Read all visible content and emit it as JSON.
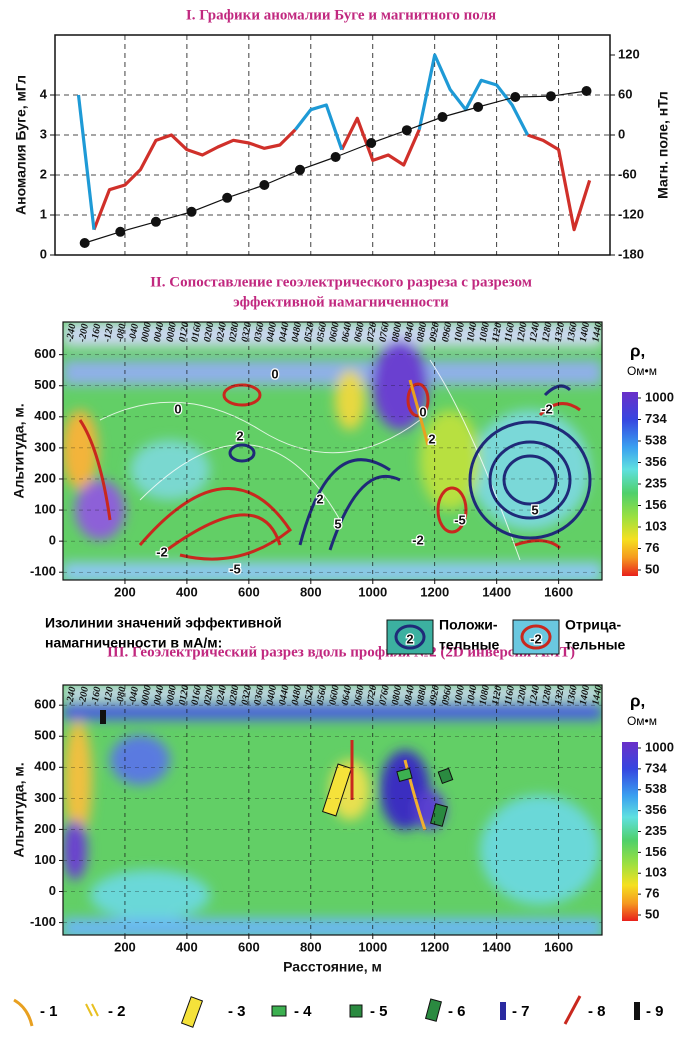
{
  "chart_data": [
    {
      "type": "line",
      "title": "I. Графики аномалии Буге и магнитного поля",
      "ylabel": "Аномалия Буге, мГл",
      "y2label": "Магн. поле, нТл",
      "xlim": [
        0,
        1740
      ],
      "xticks": [
        200,
        400,
        600,
        800,
        1000,
        1200,
        1400,
        1600
      ],
      "grid": true,
      "ylim": [
        0,
        5.5
      ],
      "yticks": [
        0,
        1,
        2,
        3,
        4
      ],
      "y2lim": [
        -180,
        150
      ],
      "y2ticks": [
        -180,
        -120,
        -60,
        0,
        60,
        120
      ],
      "y2tick_colors": [
        "#d0302a",
        "#d0302a",
        "#d0302a",
        "#111111",
        "#1e9ad6",
        "#1e9ad6"
      ],
      "series": [
        {
          "color": "#d0302a",
          "axis": "y2",
          "x": [
            50,
            100,
            150,
            200,
            250,
            300,
            350,
            400,
            450,
            500,
            550,
            600,
            650,
            700,
            750,
            800,
            850,
            900,
            950,
            1000,
            1050,
            1100,
            1150,
            1200,
            1250,
            1300,
            1350,
            1400,
            1450,
            1500,
            1550,
            1600,
            1650,
            1700
          ],
          "values": [
            null,
            -142,
            -82,
            -75,
            -52,
            -8,
            0,
            -22,
            -30,
            -18,
            -8,
            -12,
            -20,
            -15,
            8,
            null,
            null,
            -22,
            25,
            -38,
            -30,
            -45,
            8,
            null,
            null,
            null,
            null,
            null,
            null,
            0,
            -8,
            -22,
            -142,
            -68
          ]
        },
        {
          "color": "#1e9ad6",
          "axis": "y2",
          "x": [
            50,
            100,
            150,
            200,
            250,
            300,
            350,
            400,
            450,
            500,
            550,
            600,
            650,
            700,
            750,
            800,
            850,
            900,
            950,
            1000,
            1050,
            1100,
            1150,
            1200,
            1250,
            1300,
            1350,
            1400,
            1450,
            1500,
            1550,
            1600,
            1650,
            1700
          ],
          "values": [
            60,
            -142,
            null,
            null,
            null,
            null,
            null,
            null,
            null,
            null,
            null,
            null,
            null,
            null,
            8,
            38,
            45,
            -22,
            null,
            null,
            null,
            null,
            8,
            120,
            68,
            38,
            82,
            75,
            45,
            0,
            null,
            null,
            null,
            null
          ]
        },
        {
          "color": "#111111",
          "markers": true,
          "x": [
            70,
            185,
            300,
            415,
            530,
            650,
            765,
            880,
            995,
            1110,
            1225,
            1340,
            1460,
            1575,
            1690
          ],
          "values": [
            0.3,
            0.58,
            0.83,
            1.08,
            1.43,
            1.75,
            2.13,
            2.45,
            2.8,
            3.12,
            3.45,
            3.7,
            3.95,
            3.97,
            4.1
          ]
        }
      ]
    },
    {
      "type": "heatmap",
      "title_lines": [
        "II.  Сопоставление геоэлектрического разреза с разрезом",
        "эффективной намагниченности"
      ],
      "ylabel": "Альтитуда, м.",
      "xlim": [
        0,
        1740
      ],
      "xticks": [
        200,
        400,
        600,
        800,
        1000,
        1200,
        1400,
        1600
      ],
      "ylim": [
        -125,
        705
      ],
      "yticks": [
        -100,
        0,
        100,
        200,
        300,
        400,
        500,
        600
      ],
      "stations": [
        "-240",
        "-200",
        "-160",
        "-120",
        "-080",
        "-040",
        "0000",
        "0040",
        "0080",
        "0120",
        "0160",
        "0200",
        "0240",
        "0280",
        "0320",
        "0360",
        "0400",
        "0440",
        "0480",
        "0520",
        "0560",
        "0600",
        "0640",
        "0680",
        "0720",
        "0760",
        "0800",
        "0840",
        "0880",
        "0920",
        "0960",
        "1000",
        "1040",
        "1080",
        "1120",
        "1160",
        "1200",
        "1240",
        "1280",
        "1320",
        "1360",
        "1400",
        "1440"
      ],
      "colorbar": {
        "label": "ρ,",
        "unit": "Ом•м",
        "ticks": [
          1000,
          734,
          538,
          356,
          235,
          156,
          103,
          76,
          50
        ]
      },
      "contour_labels": [
        "0",
        "0",
        "2",
        "-2",
        "-5",
        "2",
        "5",
        "0",
        "2",
        "-5",
        "-2",
        "5",
        "-2"
      ],
      "legend": {
        "title_lines": [
          "Изолинии значений эффективной",
          "намагниченности в мА/м:"
        ],
        "positive": {
          "symbol": "2",
          "lines": [
            "Положи-",
            "тельные"
          ]
        },
        "negative": {
          "symbol": "-2",
          "lines": [
            "Отрица-",
            "тельные"
          ]
        }
      }
    },
    {
      "type": "heatmap",
      "title_lines": [
        "III.  Геоэлектрический разрез вдоль профиля №2 (2D инверсия АМТ)"
      ],
      "ylabel": "Альтитуда, м.",
      "xlabel": "Расстояние, м",
      "xlim": [
        0,
        1740
      ],
      "xticks": [
        200,
        400,
        600,
        800,
        1000,
        1200,
        1400,
        1600
      ],
      "ylim": [
        -140,
        665
      ],
      "yticks": [
        -100,
        0,
        100,
        200,
        300,
        400,
        500,
        600
      ],
      "stations": [
        "-240",
        "-200",
        "-160",
        "-120",
        "-080",
        "-040",
        "0000",
        "0040",
        "0080",
        "0120",
        "0160",
        "0200",
        "0240",
        "0280",
        "0320",
        "0360",
        "0400",
        "0440",
        "0480",
        "0520",
        "0560",
        "0600",
        "0640",
        "0680",
        "0720",
        "0760",
        "0800",
        "0840",
        "0880",
        "0920",
        "0960",
        "1000",
        "1040",
        "1080",
        "1120",
        "1160",
        "1200",
        "1240",
        "1280",
        "1320",
        "1360",
        "1400",
        "1440"
      ],
      "colorbar": {
        "label": "ρ,",
        "unit": "Ом•м",
        "ticks": [
          1000,
          734,
          538,
          356,
          235,
          156,
          103,
          76,
          50
        ]
      },
      "legend_items": [
        "- 1",
        "- 2",
        "- 3",
        "- 4",
        "- 5",
        "- 6",
        "- 7",
        "- 8",
        "- 9"
      ]
    }
  ]
}
